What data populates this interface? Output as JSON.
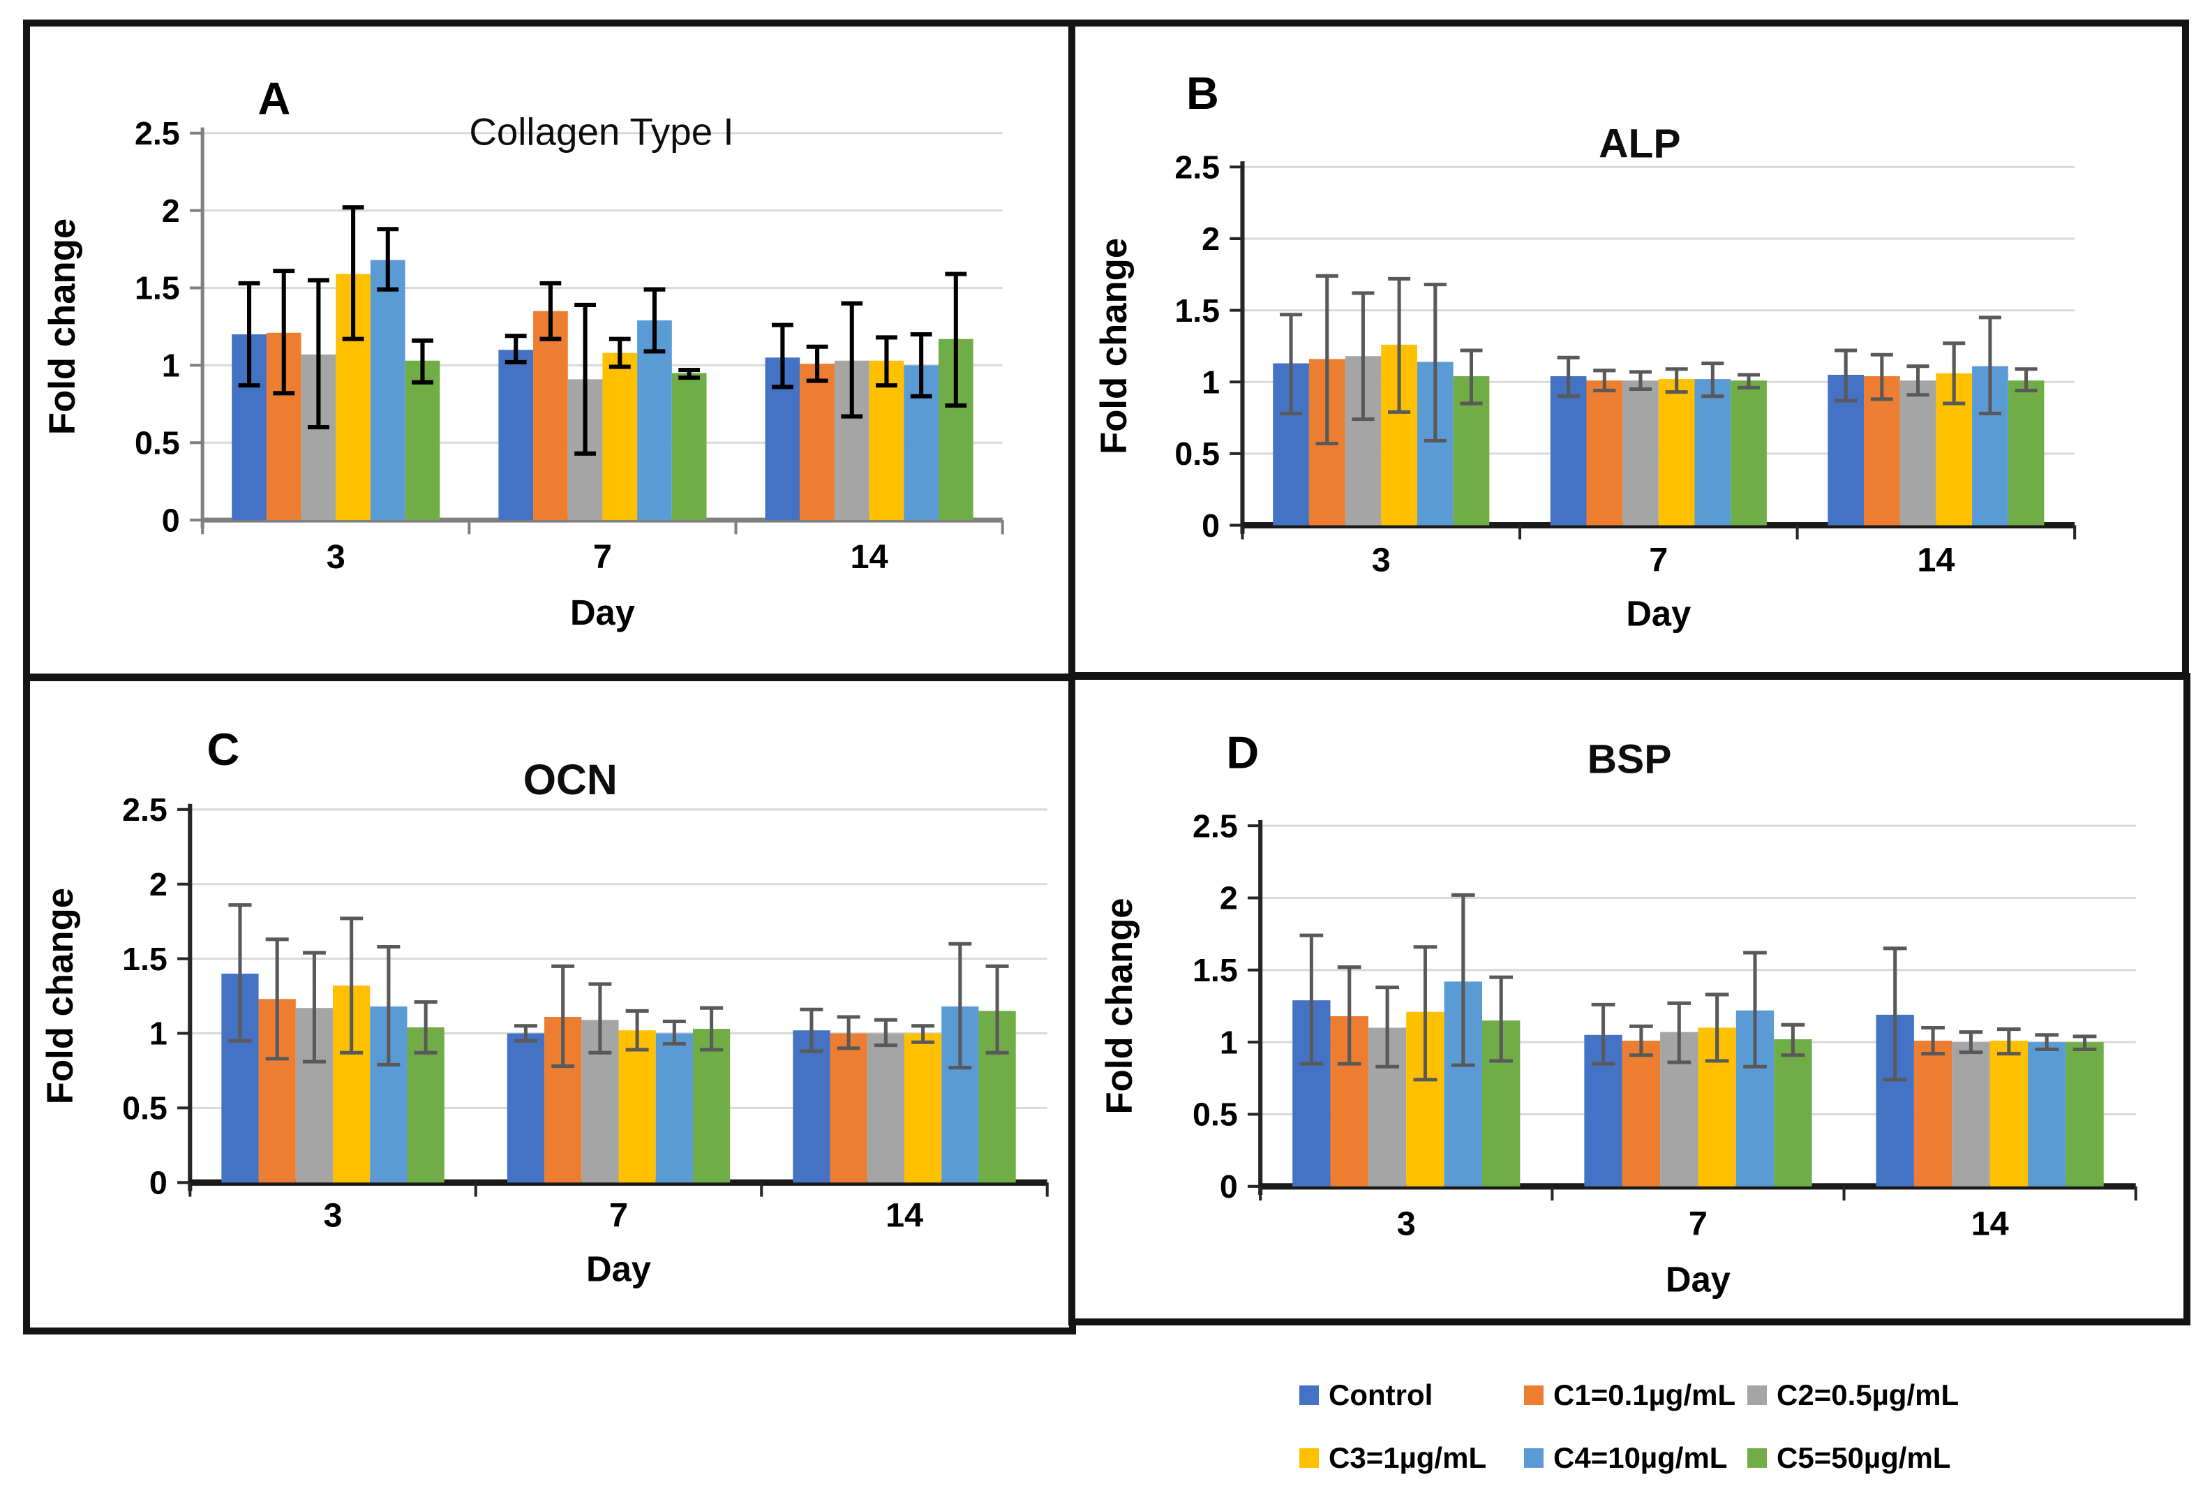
{
  "figure": {
    "ylabel": "Fold change",
    "xlabel": "Day",
    "categories": [
      "3",
      "7",
      "14"
    ]
  },
  "legend": {
    "items": [
      {
        "label": "Control",
        "color": "#4472C4"
      },
      {
        "label": "C1=0.1µg/mL",
        "color": "#ED7D31"
      },
      {
        "label": "C2=0.5µg/mL",
        "color": "#A5A5A5"
      },
      {
        "label": "C3=1µg/mL",
        "color": "#FFC000"
      },
      {
        "label": "C4=10µg/mL",
        "color": "#5B9BD5"
      },
      {
        "label": "C5=50µg/mL",
        "color": "#70AD47"
      }
    ]
  },
  "chart_data": [
    {
      "id": "A",
      "letter": "A",
      "type": "bar",
      "title": "Collagen Type I",
      "xlabel": "Day",
      "ylabel": "Fold change",
      "categories": [
        "3",
        "7",
        "14"
      ],
      "ylim": [
        0,
        2.5
      ],
      "yticks": [
        0,
        0.5,
        1,
        1.5,
        2,
        2.5
      ],
      "ytick_labels": [
        "0",
        "0.5",
        "1",
        "1.5",
        "2",
        "2.5"
      ],
      "grid": true,
      "series": [
        {
          "name": "Control",
          "values": [
            1.2,
            1.1,
            1.05
          ],
          "err_low": [
            0.87,
            1.02,
            0.86
          ],
          "err_high": [
            1.53,
            1.19,
            1.26
          ]
        },
        {
          "name": "C1=0.1µg/mL",
          "values": [
            1.21,
            1.35,
            1.01
          ],
          "err_low": [
            0.82,
            1.17,
            0.9
          ],
          "err_high": [
            1.61,
            1.53,
            1.12
          ]
        },
        {
          "name": "C2=0.5µg/mL",
          "values": [
            1.07,
            0.91,
            1.03
          ],
          "err_low": [
            0.6,
            0.43,
            0.67
          ],
          "err_high": [
            1.55,
            1.39,
            1.4
          ]
        },
        {
          "name": "C3=1µg/mL",
          "values": [
            1.59,
            1.08,
            1.03
          ],
          "err_low": [
            1.17,
            0.99,
            0.87
          ],
          "err_high": [
            2.02,
            1.17,
            1.18
          ]
        },
        {
          "name": "C4=10µg/mL",
          "values": [
            1.68,
            1.29,
            1.0
          ],
          "err_low": [
            1.49,
            1.09,
            0.8
          ],
          "err_high": [
            1.88,
            1.49,
            1.2
          ]
        },
        {
          "name": "C5=50µg/mL",
          "values": [
            1.03,
            0.95,
            1.17
          ],
          "err_low": [
            0.89,
            0.92,
            0.74
          ],
          "err_high": [
            1.16,
            0.97,
            1.59
          ]
        }
      ]
    },
    {
      "id": "B",
      "letter": "B",
      "type": "bar",
      "title": "ALP",
      "xlabel": "Day",
      "ylabel": "Fold change",
      "categories": [
        "3",
        "7",
        "14"
      ],
      "ylim": [
        0,
        2.5
      ],
      "yticks": [
        0,
        0.5,
        1,
        1.5,
        2,
        2.5
      ],
      "ytick_labels": [
        "0",
        "0.5",
        "1",
        "1.5",
        "2",
        "2.5"
      ],
      "grid": true,
      "series": [
        {
          "name": "Control",
          "values": [
            1.13,
            1.04,
            1.05
          ],
          "err_low": [
            0.78,
            0.9,
            0.87
          ],
          "err_high": [
            1.47,
            1.17,
            1.22
          ]
        },
        {
          "name": "C1=0.1µg/mL",
          "values": [
            1.16,
            1.01,
            1.04
          ],
          "err_low": [
            0.57,
            0.94,
            0.88
          ],
          "err_high": [
            1.74,
            1.08,
            1.19
          ]
        },
        {
          "name": "C2=0.5µg/mL",
          "values": [
            1.18,
            1.01,
            1.01
          ],
          "err_low": [
            0.74,
            0.95,
            0.91
          ],
          "err_high": [
            1.62,
            1.07,
            1.11
          ]
        },
        {
          "name": "C3=1µg/mL",
          "values": [
            1.26,
            1.02,
            1.06
          ],
          "err_low": [
            0.79,
            0.93,
            0.85
          ],
          "err_high": [
            1.72,
            1.09,
            1.27
          ]
        },
        {
          "name": "C4=10µg/mL",
          "values": [
            1.14,
            1.02,
            1.11
          ],
          "err_low": [
            0.59,
            0.9,
            0.78
          ],
          "err_high": [
            1.68,
            1.13,
            1.45
          ]
        },
        {
          "name": "C5=50µg/mL",
          "values": [
            1.04,
            1.01,
            1.01
          ],
          "err_low": [
            0.85,
            0.96,
            0.94
          ],
          "err_high": [
            1.22,
            1.05,
            1.09
          ]
        }
      ]
    },
    {
      "id": "C",
      "letter": "C",
      "type": "bar",
      "title": "OCN",
      "xlabel": "Day",
      "ylabel": "Fold change",
      "categories": [
        "3",
        "7",
        "14"
      ],
      "ylim": [
        0,
        2.5
      ],
      "yticks": [
        0,
        0.5,
        1,
        1.5,
        2,
        2.5
      ],
      "ytick_labels": [
        "0",
        "0.5",
        "1",
        "1.5",
        "2",
        "2.5"
      ],
      "grid": true,
      "series": [
        {
          "name": "Control",
          "values": [
            1.4,
            1.0,
            1.02
          ],
          "err_low": [
            0.95,
            0.95,
            0.88
          ],
          "err_high": [
            1.86,
            1.05,
            1.16
          ]
        },
        {
          "name": "C1=0.1µg/mL",
          "values": [
            1.23,
            1.11,
            1.0
          ],
          "err_low": [
            0.83,
            0.78,
            0.9
          ],
          "err_high": [
            1.63,
            1.45,
            1.11
          ]
        },
        {
          "name": "C2=0.5µg/mL",
          "values": [
            1.17,
            1.09,
            1.0
          ],
          "err_low": [
            0.81,
            0.87,
            0.92
          ],
          "err_high": [
            1.54,
            1.33,
            1.09
          ]
        },
        {
          "name": "C3=1µg/mL",
          "values": [
            1.32,
            1.02,
            1.0
          ],
          "err_low": [
            0.87,
            0.89,
            0.94
          ],
          "err_high": [
            1.77,
            1.15,
            1.05
          ]
        },
        {
          "name": "C4=10µg/mL",
          "values": [
            1.18,
            1.0,
            1.18
          ],
          "err_low": [
            0.79,
            0.93,
            0.77
          ],
          "err_high": [
            1.58,
            1.08,
            1.6
          ]
        },
        {
          "name": "C5=50µg/mL",
          "values": [
            1.04,
            1.03,
            1.15
          ],
          "err_low": [
            0.87,
            0.89,
            0.87
          ],
          "err_high": [
            1.21,
            1.17,
            1.45
          ]
        }
      ]
    },
    {
      "id": "D",
      "letter": "D",
      "type": "bar",
      "title": "BSP",
      "xlabel": "Day",
      "ylabel": "Fold change",
      "categories": [
        "3",
        "7",
        "14"
      ],
      "ylim": [
        0,
        2.5
      ],
      "yticks": [
        0,
        0.5,
        1,
        1.5,
        2,
        2.5
      ],
      "ytick_labels": [
        "0",
        "0.5",
        "1",
        "1.5",
        "2",
        "2.5"
      ],
      "grid": true,
      "series": [
        {
          "name": "Control",
          "values": [
            1.29,
            1.05,
            1.19
          ],
          "err_low": [
            0.85,
            0.85,
            0.74
          ],
          "err_high": [
            1.74,
            1.26,
            1.65
          ]
        },
        {
          "name": "C1=0.1µg/mL",
          "values": [
            1.18,
            1.01,
            1.01
          ],
          "err_low": [
            0.85,
            0.91,
            0.92
          ],
          "err_high": [
            1.52,
            1.11,
            1.1
          ]
        },
        {
          "name": "C2=0.5µg/mL",
          "values": [
            1.1,
            1.07,
            1.0
          ],
          "err_low": [
            0.83,
            0.86,
            0.93
          ],
          "err_high": [
            1.38,
            1.27,
            1.07
          ]
        },
        {
          "name": "C3=1µg/mL",
          "values": [
            1.21,
            1.1,
            1.01
          ],
          "err_low": [
            0.74,
            0.87,
            0.92
          ],
          "err_high": [
            1.66,
            1.33,
            1.09
          ]
        },
        {
          "name": "C4=10µg/mL",
          "values": [
            1.42,
            1.22,
            1.0
          ],
          "err_low": [
            0.84,
            0.83,
            0.95
          ],
          "err_high": [
            2.02,
            1.62,
            1.05
          ]
        },
        {
          "name": "C5=50µg/mL",
          "values": [
            1.15,
            1.02,
            1.0
          ],
          "err_low": [
            0.87,
            0.91,
            0.95
          ],
          "err_high": [
            1.45,
            1.12,
            1.04
          ]
        }
      ]
    }
  ]
}
